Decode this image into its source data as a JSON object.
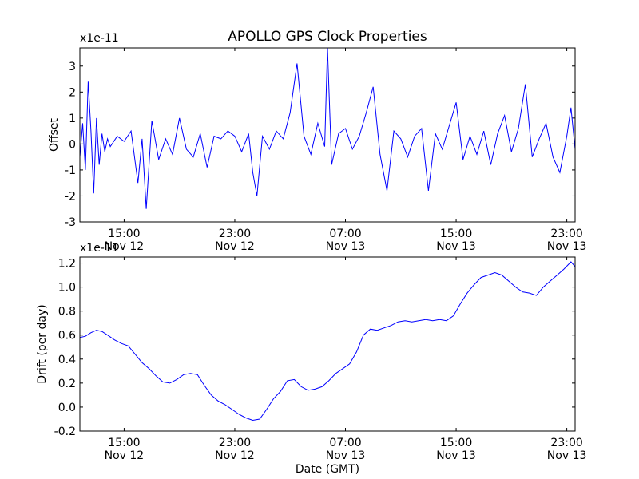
{
  "chart_data": [
    {
      "type": "line",
      "title": "APOLLO GPS Clock Properties",
      "ylabel": "Offset",
      "yscale_label": "x1e-11",
      "xlabel": "",
      "ylim": [
        -3,
        3.7
      ],
      "yticks": [
        "-3",
        "-2",
        "-1",
        "0",
        "1",
        "2",
        "3"
      ],
      "xticks": [
        {
          "time": "15:00",
          "date": "Nov 12"
        },
        {
          "time": "23:00",
          "date": "Nov 12"
        },
        {
          "time": "07:00",
          "date": "Nov 13"
        },
        {
          "time": "15:00",
          "date": "Nov 13"
        },
        {
          "time": "23:00",
          "date": "Nov 13"
        }
      ],
      "series": [
        {
          "color": "#0000ff",
          "x_hours": [
            11.8,
            12.0,
            12.2,
            12.4,
            12.6,
            12.8,
            13.0,
            13.2,
            13.4,
            13.6,
            13.8,
            14.0,
            14.5,
            15.0,
            15.5,
            16.0,
            16.3,
            16.6,
            17.0,
            17.5,
            18.0,
            18.5,
            19.0,
            19.5,
            20.0,
            20.5,
            21.0,
            21.5,
            22.0,
            22.5,
            23.0,
            23.5,
            24.0,
            24.3,
            24.6,
            25.0,
            25.5,
            26.0,
            26.5,
            27.0,
            27.5,
            28.0,
            28.5,
            29.0,
            29.5,
            29.7,
            30.0,
            30.5,
            31.0,
            31.5,
            32.0,
            32.5,
            33.0,
            33.5,
            34.0,
            34.5,
            35.0,
            35.5,
            36.0,
            36.5,
            37.0,
            37.5,
            38.0,
            38.5,
            39.0,
            39.5,
            40.0,
            40.5,
            41.0,
            41.5,
            42.0,
            42.5,
            43.0,
            43.5,
            44.0,
            44.5,
            45.0,
            45.5,
            46.0,
            46.5,
            47.0,
            47.3,
            47.6
          ],
          "values": [
            -0.5,
            0.8,
            -1.0,
            2.4,
            0.5,
            -1.9,
            1.0,
            -0.8,
            0.4,
            -0.3,
            0.2,
            -0.1,
            0.3,
            0.1,
            0.5,
            -1.5,
            0.2,
            -2.5,
            0.9,
            -0.6,
            0.2,
            -0.4,
            1.0,
            -0.2,
            -0.5,
            0.4,
            -0.9,
            0.3,
            0.2,
            0.5,
            0.3,
            -0.3,
            0.4,
            -1.1,
            -2.0,
            0.3,
            -0.2,
            0.5,
            0.2,
            1.2,
            3.1,
            0.3,
            -0.4,
            0.8,
            -0.1,
            3.7,
            -0.8,
            0.4,
            0.6,
            -0.2,
            0.3,
            1.2,
            2.2,
            -0.4,
            -1.8,
            0.5,
            0.2,
            -0.5,
            0.3,
            0.6,
            -1.8,
            0.4,
            -0.2,
            0.7,
            1.6,
            -0.6,
            0.3,
            -0.4,
            0.5,
            -0.8,
            0.4,
            1.1,
            -0.3,
            0.6,
            2.3,
            -0.5,
            0.2,
            0.8,
            -0.5,
            -1.1,
            0.3,
            1.4,
            -0.2
          ]
        }
      ]
    },
    {
      "type": "line",
      "title": "",
      "ylabel": "Drift (per day)",
      "yscale_label": "x1e-11",
      "xlabel": "Date (GMT)",
      "ylim": [
        -0.2,
        1.25
      ],
      "yticks": [
        "-0.2",
        "0.0",
        "0.2",
        "0.4",
        "0.6",
        "0.8",
        "1.0",
        "1.2"
      ],
      "xticks": [
        {
          "time": "15:00",
          "date": "Nov 12"
        },
        {
          "time": "23:00",
          "date": "Nov 12"
        },
        {
          "time": "07:00",
          "date": "Nov 13"
        },
        {
          "time": "15:00",
          "date": "Nov 13"
        },
        {
          "time": "23:00",
          "date": "Nov 13"
        }
      ],
      "series": [
        {
          "color": "#0000ff",
          "x_hours": [
            11.8,
            12.2,
            12.6,
            13.0,
            13.4,
            13.8,
            14.3,
            14.8,
            15.3,
            15.8,
            16.3,
            16.8,
            17.3,
            17.8,
            18.3,
            18.8,
            19.3,
            19.8,
            20.3,
            20.8,
            21.3,
            21.8,
            22.3,
            22.8,
            23.3,
            23.8,
            24.3,
            24.8,
            25.3,
            25.8,
            26.3,
            26.8,
            27.3,
            27.8,
            28.3,
            28.8,
            29.3,
            29.8,
            30.3,
            30.8,
            31.3,
            31.8,
            32.3,
            32.8,
            33.3,
            33.8,
            34.3,
            34.8,
            35.3,
            35.8,
            36.3,
            36.8,
            37.3,
            37.8,
            38.3,
            38.8,
            39.3,
            39.8,
            40.3,
            40.8,
            41.3,
            41.8,
            42.3,
            42.8,
            43.3,
            43.8,
            44.3,
            44.8,
            45.3,
            45.8,
            46.3,
            46.8,
            47.3,
            47.6
          ],
          "values": [
            0.58,
            0.59,
            0.62,
            0.64,
            0.63,
            0.6,
            0.56,
            0.53,
            0.51,
            0.44,
            0.37,
            0.32,
            0.26,
            0.21,
            0.2,
            0.23,
            0.27,
            0.28,
            0.27,
            0.18,
            0.1,
            0.05,
            0.02,
            -0.02,
            -0.06,
            -0.09,
            -0.11,
            -0.1,
            -0.02,
            0.07,
            0.13,
            0.22,
            0.23,
            0.17,
            0.14,
            0.15,
            0.17,
            0.22,
            0.28,
            0.32,
            0.36,
            0.46,
            0.6,
            0.65,
            0.64,
            0.66,
            0.68,
            0.71,
            0.72,
            0.71,
            0.72,
            0.73,
            0.72,
            0.73,
            0.72,
            0.76,
            0.86,
            0.95,
            1.02,
            1.08,
            1.1,
            1.12,
            1.1,
            1.05,
            1.0,
            0.96,
            0.95,
            0.93,
            1.0,
            1.05,
            1.1,
            1.15,
            1.21,
            1.17
          ]
        }
      ]
    }
  ]
}
